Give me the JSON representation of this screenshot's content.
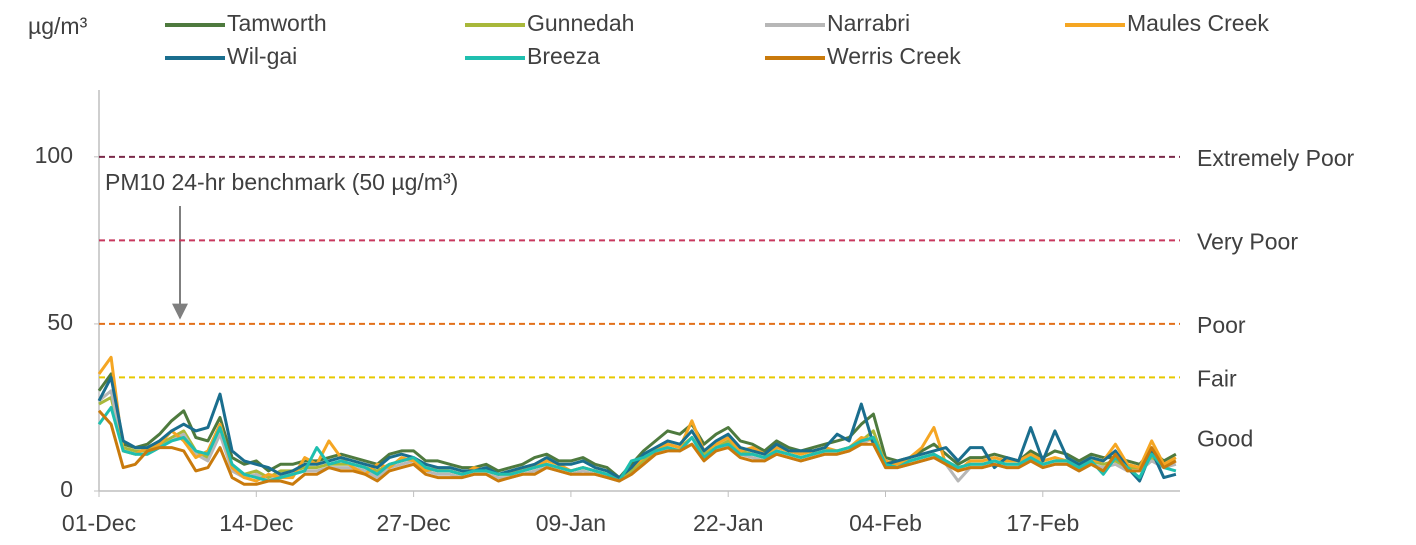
{
  "chart_data": {
    "type": "line",
    "y_unit": "µg/m³",
    "annotation": "PM10 24-hr benchmark (50 µg/m³)",
    "ylim": [
      0,
      120
    ],
    "yticks": [
      0,
      50,
      100
    ],
    "reference_lines": [
      {
        "value": 100,
        "label": "Extremely Poor",
        "color": "#7b2a4a"
      },
      {
        "value": 75,
        "label": "Very Poor",
        "color": "#c8385e"
      },
      {
        "value": 50,
        "label": "Poor",
        "color": "#e2701a"
      },
      {
        "value": 34,
        "label": "Fair",
        "color": "#e6c800"
      }
    ],
    "band_labels": [
      {
        "value": 16,
        "label": "Good",
        "color": "#3aaa35"
      }
    ],
    "categories": [
      "01-Dec",
      null,
      null,
      null,
      null,
      null,
      null,
      null,
      null,
      null,
      null,
      null,
      null,
      "14-Dec",
      null,
      null,
      null,
      null,
      null,
      null,
      null,
      null,
      null,
      null,
      null,
      null,
      "27-Dec",
      null,
      null,
      null,
      null,
      null,
      null,
      null,
      null,
      null,
      null,
      null,
      null,
      "09-Jan",
      null,
      null,
      null,
      null,
      null,
      null,
      null,
      null,
      null,
      null,
      null,
      null,
      "22-Jan",
      null,
      null,
      null,
      null,
      null,
      null,
      null,
      null,
      null,
      null,
      null,
      null,
      "04-Feb",
      null,
      null,
      null,
      null,
      null,
      null,
      null,
      null,
      null,
      null,
      null,
      null,
      "17-Feb",
      null,
      null,
      null,
      null,
      null,
      null,
      null,
      null,
      null,
      null,
      null
    ],
    "series": [
      {
        "name": "Tamworth",
        "color": "#4e7a3e",
        "values": [
          30,
          35,
          14,
          13,
          14,
          17,
          21,
          24,
          16,
          15,
          22,
          10,
          8,
          9,
          6,
          8,
          8,
          9,
          9,
          10,
          11,
          10,
          9,
          8,
          11,
          12,
          12,
          9,
          9,
          8,
          7,
          7,
          8,
          6,
          7,
          8,
          10,
          11,
          9,
          9,
          10,
          8,
          7,
          4,
          8,
          12,
          15,
          18,
          17,
          20,
          14,
          17,
          19,
          15,
          14,
          12,
          15,
          13,
          12,
          13,
          14,
          15,
          16,
          20,
          23,
          10,
          9,
          10,
          12,
          14,
          11,
          8,
          10,
          10,
          11,
          10,
          9,
          12,
          10,
          12,
          11,
          9,
          11,
          10,
          10,
          9,
          8,
          12,
          9,
          11
        ]
      },
      {
        "name": "Gunnedah",
        "color": "#a8b83a",
        "values": [
          26,
          28,
          13,
          12,
          12,
          14,
          16,
          18,
          12,
          10,
          18,
          7,
          5,
          6,
          4,
          6,
          6,
          7,
          7,
          8,
          8,
          8,
          7,
          6,
          8,
          9,
          10,
          7,
          6,
          6,
          5,
          6,
          6,
          5,
          5,
          6,
          7,
          8,
          7,
          6,
          7,
          6,
          5,
          3,
          6,
          9,
          12,
          14,
          13,
          16,
          11,
          13,
          15,
          12,
          11,
          10,
          12,
          11,
          10,
          11,
          12,
          12,
          13,
          15,
          18,
          8,
          8,
          9,
          10,
          11,
          9,
          7,
          8,
          8,
          9,
          8,
          8,
          10,
          8,
          9,
          9,
          7,
          9,
          8,
          9,
          7,
          7,
          10,
          8,
          9
        ]
      },
      {
        "name": "Narrabri",
        "color": "#b7b7b7",
        "values": [
          27,
          30,
          12,
          11,
          11,
          13,
          15,
          17,
          11,
          9,
          17,
          6,
          4,
          5,
          3,
          5,
          5,
          6,
          6,
          7,
          7,
          7,
          6,
          4,
          7,
          8,
          9,
          6,
          5,
          5,
          4,
          5,
          5,
          4,
          4,
          5,
          6,
          7,
          6,
          5,
          6,
          5,
          4,
          3,
          5,
          8,
          11,
          13,
          12,
          14,
          10,
          12,
          14,
          11,
          10,
          9,
          11,
          10,
          9,
          10,
          11,
          11,
          12,
          14,
          16,
          7,
          7,
          8,
          9,
          10,
          8,
          3,
          7,
          7,
          8,
          7,
          7,
          9,
          7,
          8,
          8,
          6,
          8,
          7,
          8,
          6,
          6,
          9,
          7,
          8
        ]
      },
      {
        "name": "Maules Creek",
        "color": "#f5a623",
        "values": [
          35,
          40,
          12,
          11,
          13,
          14,
          18,
          15,
          10,
          12,
          20,
          7,
          4,
          3,
          5,
          4,
          4,
          10,
          8,
          15,
          10,
          7,
          5,
          8,
          7,
          10,
          9,
          6,
          7,
          6,
          5,
          7,
          6,
          5,
          5,
          7,
          7,
          9,
          8,
          6,
          7,
          6,
          5,
          4,
          7,
          10,
          12,
          14,
          13,
          21,
          12,
          14,
          16,
          12,
          13,
          11,
          13,
          12,
          11,
          12,
          13,
          12,
          13,
          16,
          15,
          9,
          8,
          10,
          13,
          19,
          8,
          6,
          9,
          9,
          10,
          9,
          9,
          11,
          9,
          10,
          9,
          8,
          9,
          9,
          14,
          8,
          7,
          15,
          8,
          10
        ]
      },
      {
        "name": "Wil-gai",
        "color": "#1a6e8e",
        "values": [
          27,
          34,
          15,
          13,
          13,
          15,
          18,
          20,
          18,
          19,
          29,
          12,
          9,
          8,
          7,
          5,
          6,
          8,
          8,
          9,
          10,
          9,
          8,
          7,
          10,
          11,
          10,
          8,
          7,
          7,
          6,
          6,
          7,
          5,
          6,
          7,
          8,
          10,
          8,
          8,
          9,
          7,
          6,
          4,
          7,
          11,
          13,
          15,
          14,
          18,
          12,
          15,
          17,
          13,
          12,
          11,
          14,
          12,
          12,
          12,
          13,
          17,
          15,
          26,
          14,
          8,
          9,
          10,
          11,
          12,
          13,
          9,
          13,
          13,
          7,
          10,
          9,
          19,
          9,
          18,
          10,
          8,
          10,
          9,
          12,
          7,
          3,
          12,
          4,
          5
        ]
      },
      {
        "name": "Breeza",
        "color": "#1fbfaf",
        "values": [
          20,
          25,
          12,
          11,
          11,
          13,
          15,
          16,
          12,
          11,
          19,
          8,
          5,
          4,
          3,
          4,
          5,
          6,
          13,
          8,
          9,
          8,
          7,
          5,
          8,
          9,
          10,
          7,
          6,
          6,
          5,
          6,
          6,
          5,
          5,
          6,
          7,
          8,
          7,
          6,
          7,
          6,
          5,
          3,
          9,
          10,
          12,
          13,
          12,
          16,
          10,
          13,
          14,
          11,
          11,
          10,
          12,
          11,
          10,
          11,
          12,
          12,
          13,
          15,
          16,
          8,
          7,
          9,
          10,
          11,
          9,
          7,
          8,
          8,
          9,
          8,
          8,
          10,
          8,
          9,
          9,
          7,
          9,
          5,
          10,
          7,
          4,
          11,
          7,
          6
        ]
      },
      {
        "name": "Werris Creek",
        "color": "#c97a0c",
        "values": [
          24,
          20,
          7,
          8,
          12,
          13,
          13,
          12,
          6,
          7,
          13,
          4,
          2,
          2,
          3,
          3,
          2,
          5,
          5,
          7,
          6,
          6,
          5,
          3,
          6,
          7,
          8,
          5,
          4,
          4,
          4,
          5,
          5,
          3,
          4,
          5,
          5,
          7,
          6,
          5,
          5,
          5,
          4,
          3,
          5,
          8,
          11,
          12,
          12,
          14,
          9,
          12,
          13,
          10,
          9,
          9,
          11,
          10,
          9,
          10,
          11,
          11,
          12,
          14,
          14,
          7,
          7,
          8,
          9,
          10,
          8,
          6,
          7,
          7,
          8,
          7,
          7,
          9,
          7,
          8,
          8,
          6,
          8,
          6,
          11,
          6,
          6,
          13,
          7,
          9
        ]
      }
    ]
  }
}
